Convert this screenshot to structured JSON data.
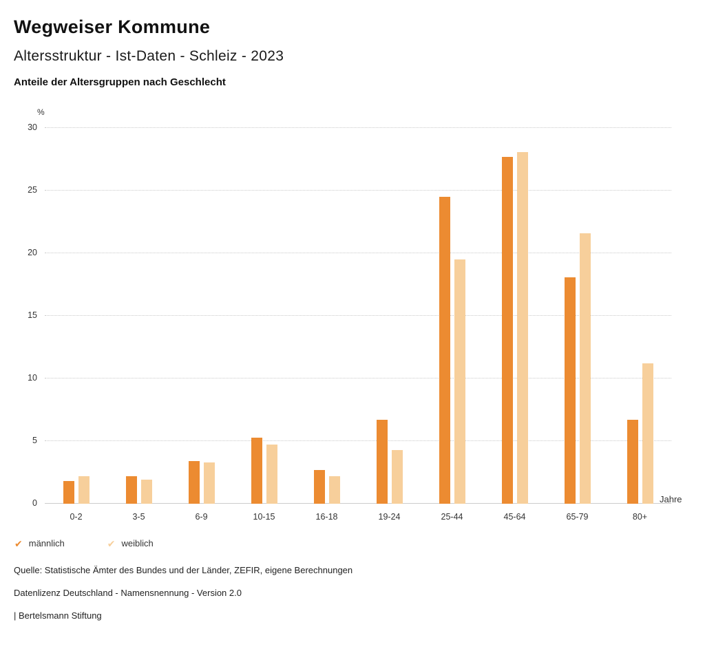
{
  "header": {
    "title": "Wegweiser Kommune",
    "subtitle": "Altersstruktur - Ist-Daten - Schleiz - 2023",
    "caption": "Anteile der Altersgruppen nach Geschlecht"
  },
  "chart_data": {
    "type": "bar",
    "title": "Anteile der Altersgruppen nach Geschlecht",
    "categories": [
      "0-2",
      "3-5",
      "6-9",
      "10-15",
      "16-18",
      "19-24",
      "25-44",
      "45-64",
      "65-79",
      "80+"
    ],
    "series": [
      {
        "name": "männlich",
        "color": "#EC8B31",
        "values": [
          1.8,
          2.2,
          3.4,
          5.3,
          2.7,
          6.7,
          24.5,
          27.7,
          18.1,
          6.7
        ]
      },
      {
        "name": "weiblich",
        "color": "#F7CF9B",
        "values": [
          2.2,
          1.9,
          3.3,
          4.7,
          2.2,
          4.3,
          19.5,
          28.1,
          21.6,
          11.2
        ]
      }
    ],
    "ylabel": "%",
    "xlabel": "Jahre",
    "ylim": [
      0,
      30
    ],
    "yticks": [
      0,
      5,
      10,
      15,
      20,
      25,
      30
    ],
    "grid": "dotted horizontal",
    "legend_position": "bottom-left"
  },
  "legend": {
    "items": [
      {
        "label": "männlich",
        "color": "#EC8B31"
      },
      {
        "label": "weiblich",
        "color": "#F7CF9B"
      }
    ]
  },
  "footer": {
    "source": "Quelle: Statistische Ämter des Bundes und der Länder, ZEFIR, eigene Berechnungen",
    "license": "Datenlizenz Deutschland - Namensnennung - Version 2.0",
    "attribution": "| Bertelsmann Stiftung"
  }
}
